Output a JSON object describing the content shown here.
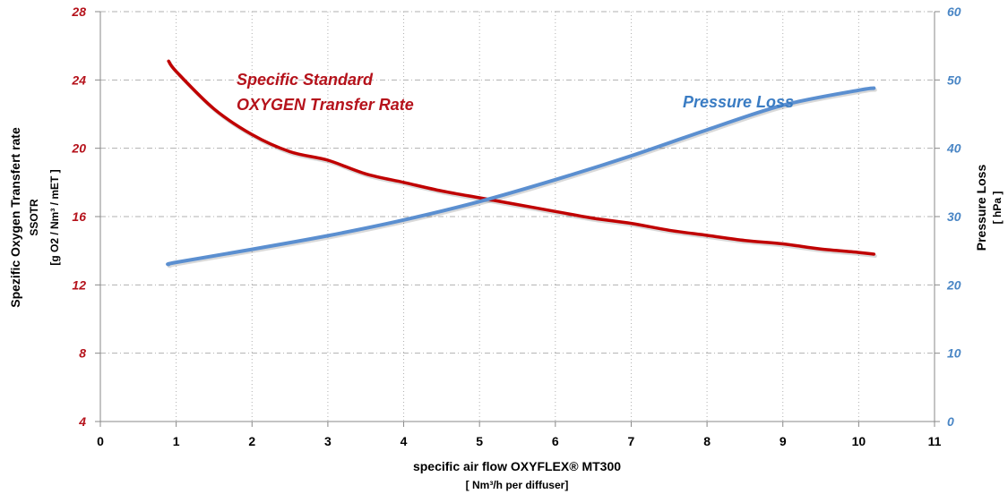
{
  "colors": {
    "ssotr": "#c00000",
    "pressure": "#5b8fd0",
    "left_axis_text": "#b5121b",
    "right_axis_text": "#4a86c5",
    "grid": "#b0b0b0"
  },
  "chart_data": {
    "type": "line",
    "xlabel": "specific air flow OXYFLEX® MT300",
    "xlabel_unit": "[ Nm³/h  per diffuser]",
    "xlim": [
      0,
      11
    ],
    "x_ticks": [
      "0",
      "1",
      "2",
      "3",
      "4",
      "5",
      "6",
      "7",
      "8",
      "9",
      "10",
      "11"
    ],
    "y_left": {
      "label_line1": "Spezific Oxygen Transfert rate",
      "label_line2": "SSOTR",
      "label_line3": "[g O2 / Nm³ / mET ]",
      "ylim": [
        4,
        28
      ],
      "ticks": [
        "4",
        "8",
        "12",
        "16",
        "20",
        "24",
        "28"
      ]
    },
    "y_right": {
      "label_line1": "Pressure Loss",
      "label_line2": "[ hPa ]",
      "ylim": [
        0,
        60
      ],
      "ticks": [
        "0",
        "10",
        "20",
        "30",
        "40",
        "50",
        "60"
      ]
    },
    "grid": true,
    "series": [
      {
        "name_line1": "Specific Standard",
        "name_line2": "OXYGEN Transfer Rate",
        "axis": "left",
        "x": [
          0.9,
          1,
          1.5,
          2,
          2.5,
          3,
          3.5,
          4,
          4.5,
          5,
          5.5,
          6,
          6.5,
          7,
          7.5,
          8,
          8.5,
          9,
          9.5,
          10,
          10.2
        ],
        "y": [
          25.1,
          24.5,
          22.3,
          20.8,
          19.8,
          19.3,
          18.5,
          18.0,
          17.5,
          17.1,
          16.7,
          16.3,
          15.9,
          15.6,
          15.2,
          14.9,
          14.6,
          14.4,
          14.1,
          13.9,
          13.8
        ]
      },
      {
        "name": "Pressure Loss",
        "axis": "right",
        "x": [
          0.9,
          1,
          2,
          3,
          4,
          5,
          6,
          7,
          8,
          9,
          10,
          10.2
        ],
        "y": [
          23.0,
          23.3,
          25.2,
          27.2,
          29.5,
          32.2,
          35.4,
          38.9,
          42.7,
          46.3,
          48.5,
          48.8
        ]
      }
    ]
  }
}
